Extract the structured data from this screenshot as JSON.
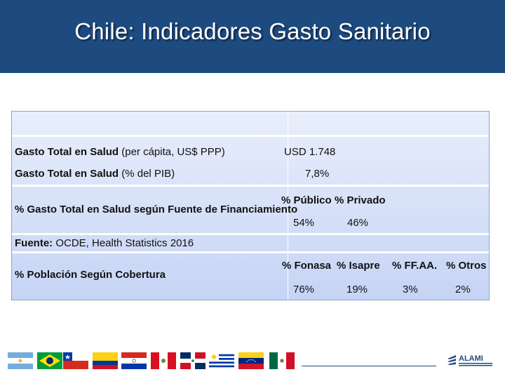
{
  "title": "Chile: Indicadores Gasto Sanitario",
  "table": {
    "row1_bold": "Gasto Total en Salud",
    "row1_rest": " (per cápita, US$ PPP)",
    "row1_value": "USD 1.748",
    "row2_bold": "Gasto Total en Salud",
    "row2_rest": " (% del PIB)",
    "row2_value": "7,8%",
    "row3_label": "% Gasto Total en Salud según Fuente de Financiamiento",
    "financing": [
      {
        "header": "% Público",
        "value": "54%"
      },
      {
        "header": "% Privado",
        "value": "46%"
      }
    ],
    "source_bold": "Fuente:",
    "source_rest": " OCDE, Health Statistics 2016",
    "row5_label": "% Población Según Cobertura",
    "coverage": [
      {
        "header": "% Fonasa",
        "value": "76%"
      },
      {
        "header": "% Isapre",
        "value": "19%"
      },
      {
        "header": "% FF.AA.",
        "value": "3%"
      },
      {
        "header": "% Otros",
        "value": "2%"
      }
    ]
  },
  "footer": {
    "logo_text": "ALAMI"
  }
}
